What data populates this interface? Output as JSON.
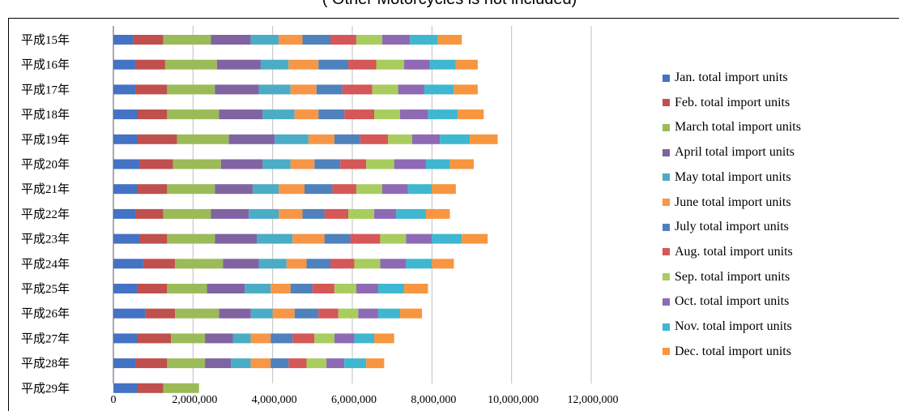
{
  "header": {
    "subtitle": "( Other Motorcycles  is not included)"
  },
  "chart_data": {
    "type": "bar",
    "orientation": "horizontal",
    "stacked": true,
    "title": "",
    "subtitle": "( Other Motorcycles  is not included)",
    "xlabel": "",
    "ylabel": "",
    "xlim": [
      0,
      12000000
    ],
    "x_ticks": [
      "0",
      "2,000,000",
      "4,000,000",
      "6,000,000",
      "8,000,000",
      "10,000,000",
      "12,000,000"
    ],
    "grid": "vertical",
    "legend_position": "right",
    "categories": [
      "平成15年",
      "平成16年",
      "平成17年",
      "平成18年",
      "平成19年",
      "平成20年",
      "平成21年",
      "平成22年",
      "平成23年",
      "平成24年",
      "平成25年",
      "平成26年",
      "平成27年",
      "平成28年",
      "平成29年"
    ],
    "series": [
      {
        "name": "Jan. total import units",
        "color": "#4472C4",
        "values": [
          500000,
          550000,
          550000,
          600000,
          600000,
          650000,
          600000,
          550000,
          650000,
          750000,
          600000,
          800000,
          600000,
          550000,
          600000
        ]
      },
      {
        "name": "Feb. total import units",
        "color": "#C0504D",
        "values": [
          750000,
          750000,
          800000,
          750000,
          1000000,
          850000,
          750000,
          700000,
          700000,
          800000,
          750000,
          750000,
          850000,
          800000,
          650000
        ]
      },
      {
        "name": "March total import units",
        "color": "#9BBB59",
        "values": [
          1200000,
          1300000,
          1200000,
          1300000,
          1300000,
          1200000,
          1200000,
          1200000,
          1200000,
          1200000,
          1000000,
          1100000,
          850000,
          950000,
          900000
        ]
      },
      {
        "name": "April total import units",
        "color": "#8064A2",
        "values": [
          1000000,
          1100000,
          1100000,
          1100000,
          1150000,
          1050000,
          950000,
          950000,
          1050000,
          900000,
          950000,
          800000,
          700000,
          650000,
          0
        ]
      },
      {
        "name": "May total import units",
        "color": "#4BACC6",
        "values": [
          700000,
          700000,
          800000,
          800000,
          850000,
          700000,
          650000,
          750000,
          900000,
          700000,
          650000,
          550000,
          450000,
          500000,
          0
        ]
      },
      {
        "name": "June total import units",
        "color": "#F79646",
        "values": [
          600000,
          750000,
          650000,
          600000,
          650000,
          600000,
          650000,
          600000,
          800000,
          500000,
          500000,
          550000,
          500000,
          500000,
          0
        ]
      },
      {
        "name": "July total import units",
        "color": "#4F81BD",
        "values": [
          700000,
          750000,
          650000,
          650000,
          650000,
          650000,
          700000,
          550000,
          650000,
          600000,
          550000,
          600000,
          550000,
          450000,
          0
        ]
      },
      {
        "name": "Aug. total import units",
        "color": "#D55757",
        "values": [
          650000,
          700000,
          750000,
          750000,
          700000,
          650000,
          600000,
          600000,
          750000,
          600000,
          550000,
          500000,
          550000,
          450000,
          0
        ]
      },
      {
        "name": "Sep. total import units",
        "color": "#A8CD5E",
        "values": [
          650000,
          700000,
          650000,
          650000,
          600000,
          700000,
          650000,
          650000,
          650000,
          650000,
          550000,
          500000,
          500000,
          500000,
          0
        ]
      },
      {
        "name": "Oct. total import units",
        "color": "#8E6AB4",
        "values": [
          700000,
          650000,
          650000,
          700000,
          700000,
          800000,
          650000,
          550000,
          650000,
          650000,
          550000,
          500000,
          500000,
          450000,
          0
        ]
      },
      {
        "name": "Nov. total import units",
        "color": "#3FB7D0",
        "values": [
          700000,
          650000,
          750000,
          750000,
          750000,
          600000,
          600000,
          750000,
          750000,
          650000,
          650000,
          550000,
          500000,
          550000,
          0
        ]
      },
      {
        "name": "Dec. total import units",
        "color": "#F7963E",
        "values": [
          600000,
          550000,
          600000,
          650000,
          700000,
          600000,
          600000,
          600000,
          650000,
          550000,
          600000,
          550000,
          500000,
          450000,
          0
        ]
      }
    ]
  }
}
